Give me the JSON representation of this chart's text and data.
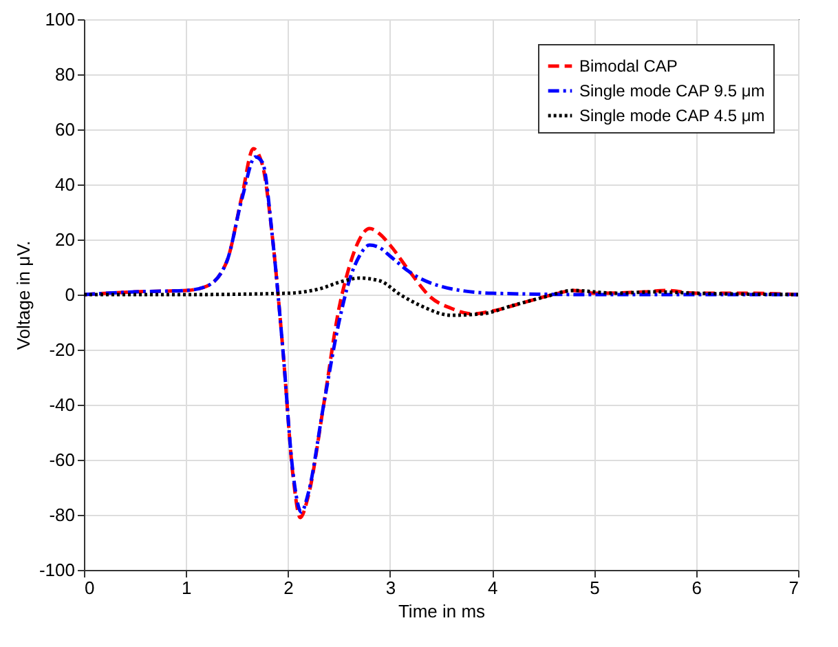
{
  "chart_data": {
    "type": "line",
    "xlabel": "Time in ms",
    "ylabel": "Voltage in μV.",
    "xlim": [
      0,
      7
    ],
    "ylim": [
      -100,
      100
    ],
    "xticks": [
      0,
      1,
      2,
      3,
      4,
      5,
      6,
      7
    ],
    "yticks": [
      -100,
      -80,
      -60,
      -40,
      -20,
      0,
      20,
      40,
      60,
      80,
      100
    ],
    "grid": true,
    "legend": "top right",
    "marker": "none",
    "series": [
      {
        "name": "Bimodal CAP",
        "color": "#ff0000",
        "line_style": "dashed",
        "x": [
          0,
          0.5,
          1,
          1.2,
          1.4,
          1.55,
          1.66,
          1.75,
          1.85,
          1.95,
          2.05,
          2.12,
          2.2,
          2.35,
          2.5,
          2.6,
          2.7,
          2.8,
          2.9,
          3,
          3.2,
          3.4,
          3.6,
          3.8,
          4,
          4.3,
          4.6,
          4.8,
          5,
          5.5,
          5.7,
          6,
          6.5,
          7
        ],
        "values": [
          0,
          1,
          1.5,
          3,
          12,
          36,
          53,
          47,
          20,
          -20,
          -66,
          -81,
          -73,
          -40,
          -5,
          10,
          20,
          24,
          22,
          18,
          8,
          -1,
          -5,
          -7,
          -6,
          -3,
          0,
          1.5,
          0.5,
          1,
          1.5,
          0.5,
          0.5,
          0
        ]
      },
      {
        "name": "Single mode CAP 9.5 μm",
        "color": "#0000ff",
        "line_style": "dashdot",
        "x": [
          0,
          0.5,
          1,
          1.2,
          1.4,
          1.55,
          1.68,
          1.75,
          1.85,
          1.95,
          2.05,
          2.13,
          2.2,
          2.35,
          2.5,
          2.6,
          2.7,
          2.8,
          2.9,
          3,
          3.2,
          3.5,
          4,
          5,
          7
        ],
        "values": [
          0,
          1,
          1.5,
          3,
          12,
          35,
          50,
          48,
          20,
          -20,
          -65,
          -79,
          -72,
          -40,
          -10,
          5,
          14,
          18,
          17,
          14,
          8,
          3,
          0.5,
          0,
          0
        ]
      },
      {
        "name": "Single mode CAP 4.5 μm",
        "color": "#000000",
        "line_style": "dotted",
        "x": [
          0,
          1,
          2,
          2.3,
          2.55,
          2.7,
          2.9,
          3.1,
          3.3,
          3.6,
          3.9,
          4.2,
          4.5,
          4.8,
          5.2,
          5.6,
          6,
          7
        ],
        "values": [
          0,
          0,
          0.5,
          2,
          5,
          6,
          5,
          0,
          -4,
          -7.5,
          -7,
          -4,
          -1,
          1.5,
          0.5,
          1,
          0.5,
          0
        ]
      }
    ]
  }
}
